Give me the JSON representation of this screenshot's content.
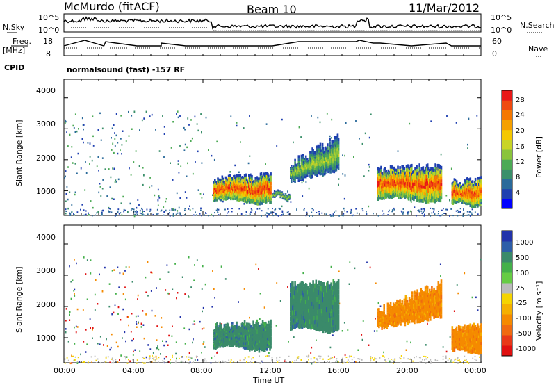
{
  "header": {
    "station": "McMurdo (fitACF)",
    "beam": "Beam 10",
    "date": "11/Mar/2012"
  },
  "status_panels": {
    "nsky_label": "N.Sky",
    "nsky_ticks": [
      "10^5",
      "10^0"
    ],
    "nsearch_label": "N.Search",
    "nsearch_ticks": [
      "10^5",
      "10^0"
    ],
    "freq_label": "Freq.",
    "freq_unit": "[MHz]",
    "freq_ticks": [
      "18",
      "8"
    ],
    "nave_label": "Nave",
    "nave_ticks": [
      "60",
      "0"
    ],
    "cpid_label": "CPID",
    "cpid_text": "normalsound (fast) -157 RF"
  },
  "chart_data": [
    {
      "type": "heatmap",
      "name": "power",
      "ylabel": "Slant Range [km]",
      "yticks": [
        "4000",
        "3000",
        "2000",
        "1000"
      ],
      "ylim": [
        200,
        4600
      ],
      "colorbar_label": "Power [dB]",
      "colorbar_ticks": [
        "28",
        "24",
        "20",
        "16",
        "12",
        "8",
        "4"
      ],
      "colorbar_colors": [
        "#0000ff",
        "#1e3fb0",
        "#2a6a9a",
        "#3a8f6a",
        "#4caa55",
        "#8ac43c",
        "#c8d426",
        "#f5c800",
        "#f5a000",
        "#f57800",
        "#f04a10",
        "#e81818"
      ],
      "echo_regions": [
        {
          "t_start": 8.6,
          "t_end": 11.9,
          "r_low": 600,
          "r_high": 1600,
          "level": "high"
        },
        {
          "t_start": 12.0,
          "t_end": 13.0,
          "r_low": 700,
          "r_high": 1000,
          "level": "medium"
        },
        {
          "t_start": 13.0,
          "t_end": 15.8,
          "r_low": 1200,
          "r_high": 2900,
          "level": "medium"
        },
        {
          "t_start": 18.0,
          "t_end": 21.7,
          "r_low": 650,
          "r_high": 1900,
          "level": "high"
        },
        {
          "t_start": 22.3,
          "t_end": 24.0,
          "r_low": 500,
          "r_high": 1500,
          "level": "high"
        }
      ]
    },
    {
      "type": "heatmap",
      "name": "velocity",
      "ylabel": "Slant Range [km]",
      "yticks": [
        "4000",
        "3000",
        "2000",
        "1000"
      ],
      "ylim": [
        200,
        4600
      ],
      "colorbar_label": "Velocity [m s⁻¹]",
      "colorbar_ticks": [
        "1000",
        "500",
        "100",
        "25",
        "-25",
        "-100",
        "-500",
        "-1000"
      ],
      "colorbar_colors": [
        "#2233aa",
        "#2d5ea8",
        "#3a8a6a",
        "#44b04a",
        "#66cc44",
        "#bbbbbb",
        "#f5d400",
        "#f5b000",
        "#f58a00",
        "#f06a10",
        "#e83818",
        "#e01010"
      ],
      "echo_regions": [
        {
          "t_start": 8.6,
          "t_end": 11.9,
          "r_low": 600,
          "r_high": 1600,
          "sign": "toward"
        },
        {
          "t_start": 13.0,
          "t_end": 15.8,
          "r_low": 1200,
          "r_high": 2900,
          "sign": "toward"
        },
        {
          "t_start": 18.0,
          "t_end": 21.7,
          "r_low": 650,
          "r_high": 1900,
          "sign": "away"
        },
        {
          "t_start": 22.3,
          "t_end": 24.0,
          "r_low": 500,
          "r_high": 1500,
          "sign": "away"
        }
      ]
    }
  ],
  "xaxis": {
    "xlabel": "Time UT",
    "ticks": [
      "00:00",
      "04:00",
      "08:00",
      "12:00",
      "16:00",
      "20:00",
      "00:00"
    ]
  },
  "colors": {
    "power_high": "#e81818",
    "velocity_toward": "#3a8a6a",
    "velocity_away": "#f58a00"
  }
}
